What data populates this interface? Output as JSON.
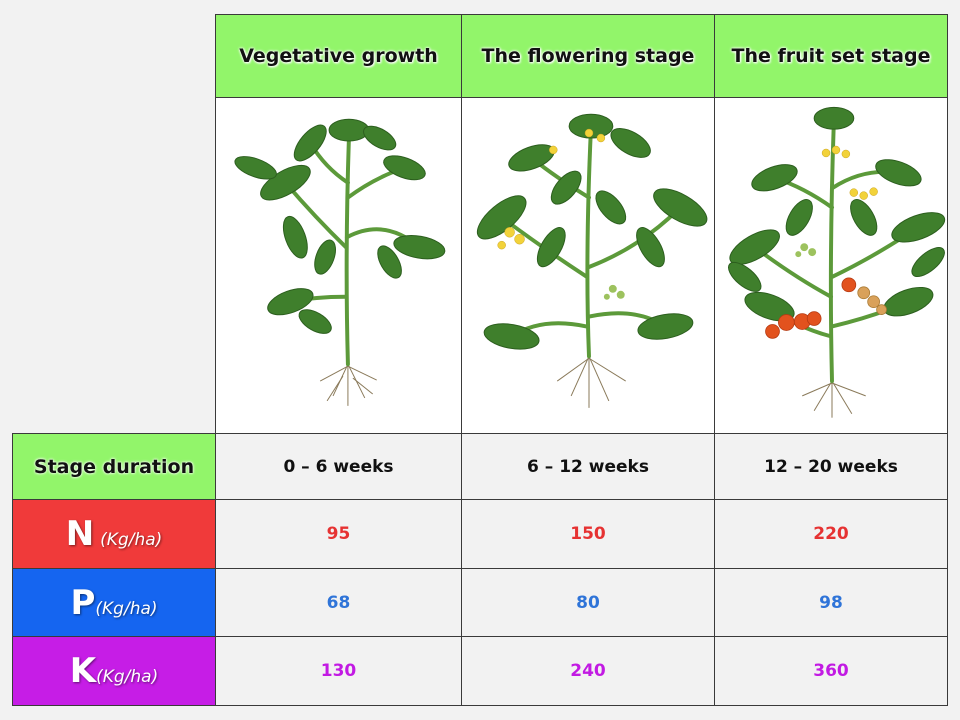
{
  "headers": [
    "Vegetative growth",
    "The flowering stage",
    "The fruit set stage"
  ],
  "plant_images": [
    "young tomato plant",
    "flowering tomato plant",
    "tomato plant with fruit"
  ],
  "rows": {
    "duration": {
      "label": "Stage duration",
      "values": [
        "0 – 6 weeks",
        "6 – 12 weeks",
        "12 – 20 weeks"
      ]
    },
    "N": {
      "symbol": "N",
      "unit": "(Kg/ha)",
      "values": [
        "95",
        "150",
        "220"
      ],
      "color": "#f03a3a"
    },
    "P": {
      "symbol": "P",
      "unit": "(Kg/ha)",
      "values": [
        "68",
        "80",
        "98"
      ],
      "color": "#1565f0"
    },
    "K": {
      "symbol": "K",
      "unit": "(Kg/ha)",
      "values": [
        "130",
        "240",
        "360"
      ],
      "color": "#c61de6"
    }
  },
  "colors": {
    "header_bg": "#92f56a",
    "page_bg": "#f2f2f2"
  }
}
